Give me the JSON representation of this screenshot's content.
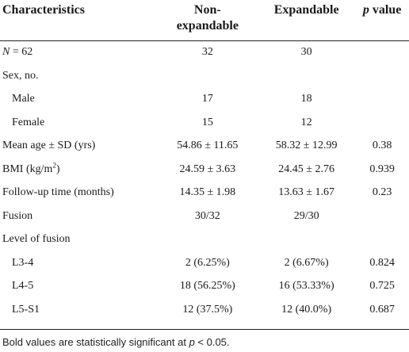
{
  "table": {
    "headers": {
      "characteristics": "Characteristics",
      "nonexp_line1": "Non-",
      "nonexp_line2": "expandable",
      "expandable": "Expandable",
      "p_italic": "p",
      "p_rest": " value"
    },
    "rows": [
      {
        "label_italic": "N",
        "label_rest": " = 62",
        "nonexp": "32",
        "exp": "30",
        "p": ""
      },
      {
        "label": "Sex, no.",
        "nonexp": "",
        "exp": "",
        "p": ""
      },
      {
        "label": "Male",
        "nonexp": "17",
        "exp": "18",
        "p": ""
      },
      {
        "label": "Female",
        "nonexp": "15",
        "exp": "12",
        "p": ""
      },
      {
        "label": "Mean age ± SD (yrs)",
        "nonexp": "54.86 ± 11.65",
        "exp": "58.32 ± 12.99",
        "p": "0.38"
      },
      {
        "label_pre": "BMI (kg/m",
        "label_sup": "2",
        "label_post": ")",
        "nonexp": "24.59 ± 3.63",
        "exp": "24.45 ± 2.76",
        "p": "0.939"
      },
      {
        "label": "Follow-up time (months)",
        "nonexp": "14.35 ± 1.98",
        "exp": "13.63 ± 1.67",
        "p": "0.23"
      },
      {
        "label": "Fusion",
        "nonexp": "30/32",
        "exp": "29/30",
        "p": ""
      },
      {
        "label": "Level of fusion",
        "nonexp": "",
        "exp": "",
        "p": ""
      },
      {
        "label": "L3-4",
        "nonexp": "2 (6.25%)",
        "exp": "2 (6.67%)",
        "p": "0.824"
      },
      {
        "label": "L4-5",
        "nonexp": "18 (56.25%)",
        "exp": "16 (53.33%)",
        "p": "0.725"
      },
      {
        "label": "L5-S1",
        "nonexp": "12 (37.5%)",
        "exp": "12 (40.0%)",
        "p": "0.687"
      }
    ]
  },
  "footnote": {
    "pre": "Bold values are statistically significant at ",
    "italic": "p",
    "post": " < 0.05."
  }
}
